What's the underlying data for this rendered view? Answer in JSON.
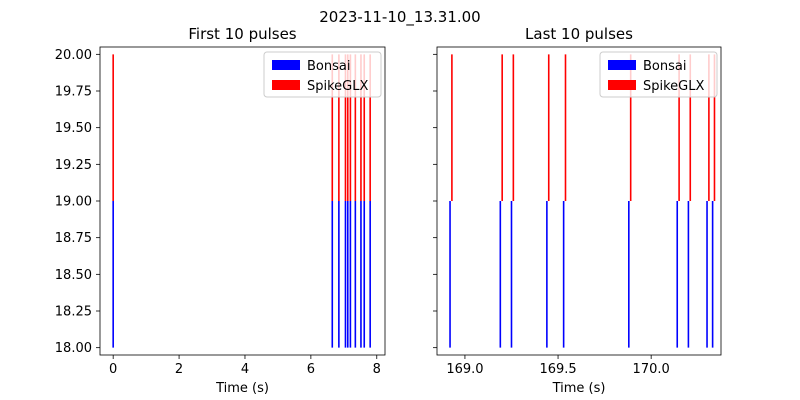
{
  "figure_title": "2023-11-10_13.31.00",
  "legend": {
    "items": [
      {
        "label": "Bonsai",
        "color": "#0000ff"
      },
      {
        "label": "SpikeGLX",
        "color": "#ff0000"
      }
    ]
  },
  "chart_data": [
    {
      "type": "event-lines",
      "title": "First 10 pulses",
      "xlabel": "Time (s)",
      "ylabel": "",
      "xlim": [
        -0.4,
        8.25
      ],
      "ylim": [
        17.95,
        20.05
      ],
      "xticks": [
        0,
        2,
        4,
        6,
        8
      ],
      "xtick_labels": [
        "0",
        "2",
        "4",
        "6",
        "8"
      ],
      "yticks": [
        18.0,
        18.25,
        18.5,
        18.75,
        19.0,
        19.25,
        19.5,
        19.75,
        20.0
      ],
      "ytick_labels": [
        "18.00",
        "18.25",
        "18.50",
        "18.75",
        "19.00",
        "19.25",
        "19.50",
        "19.75",
        "20.00"
      ],
      "legend_position": "top-right",
      "series": [
        {
          "name": "Bonsai",
          "color": "#0000ff",
          "y_range": [
            18,
            19
          ],
          "x": [
            0,
            6.65,
            6.85,
            7.05,
            7.12,
            7.2,
            7.35,
            7.52,
            7.62,
            7.8
          ]
        },
        {
          "name": "SpikeGLX",
          "color": "#ff0000",
          "y_range": [
            19,
            20
          ],
          "x": [
            0,
            6.65,
            6.85,
            7.05,
            7.12,
            7.2,
            7.35,
            7.52,
            7.62,
            7.8
          ]
        }
      ]
    },
    {
      "type": "event-lines",
      "title": "Last 10 pulses",
      "xlabel": "Time (s)",
      "ylabel": "",
      "xlim": [
        168.85,
        170.375
      ],
      "ylim": [
        17.95,
        20.05
      ],
      "xticks": [
        169.0,
        169.5,
        170.0
      ],
      "xtick_labels": [
        "169.0",
        "169.5",
        "170.0"
      ],
      "yticks": [
        18.0,
        18.25,
        18.5,
        18.75,
        19.0,
        19.25,
        19.5,
        19.75,
        20.0
      ],
      "ytick_labels": [],
      "legend_position": "top-right",
      "series": [
        {
          "name": "Bonsai",
          "color": "#0000ff",
          "y_range": [
            18,
            19
          ],
          "x": [
            168.92,
            169.19,
            169.25,
            169.44,
            169.53,
            169.88,
            170.14,
            170.2,
            170.3,
            170.33
          ]
        },
        {
          "name": "SpikeGLX",
          "color": "#ff0000",
          "y_range": [
            19,
            20
          ],
          "x": [
            168.93,
            169.2,
            169.26,
            169.45,
            169.54,
            169.89,
            170.15,
            170.21,
            170.31,
            170.34
          ]
        }
      ]
    }
  ]
}
